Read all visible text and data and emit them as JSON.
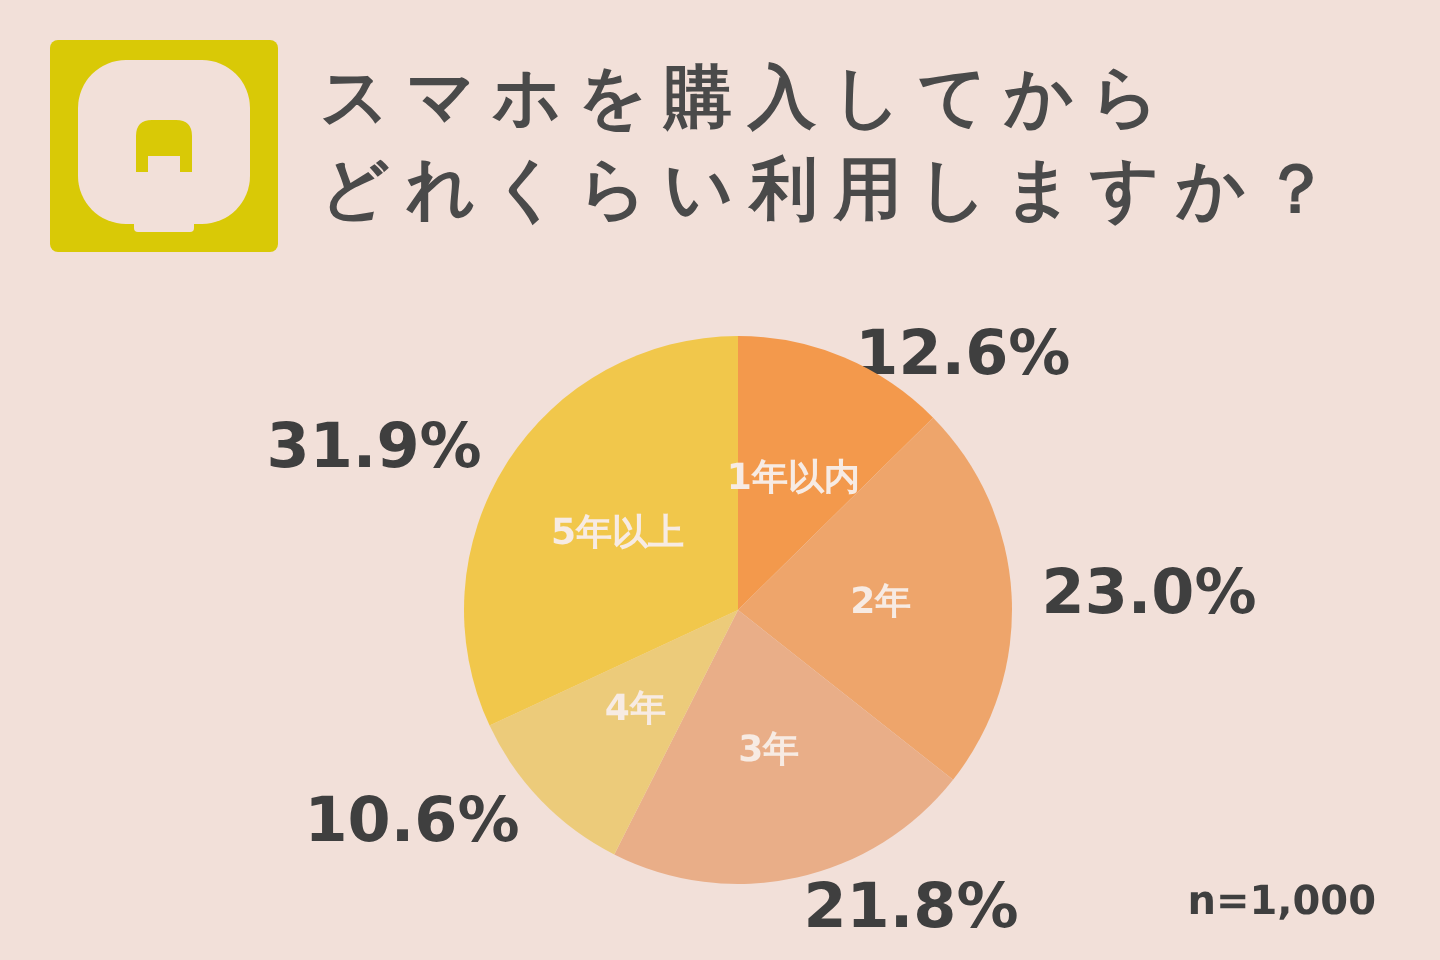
{
  "chart_data": {
    "type": "pie",
    "title": "スマホを購入してからどれくらい利用しますか？",
    "categories": [
      "1年以内",
      "2年",
      "3年",
      "4年",
      "5年以上"
    ],
    "values": [
      12.6,
      23.0,
      21.8,
      10.6,
      31.9
    ],
    "colors": [
      "#f3994c",
      "#eea56b",
      "#e9ae88",
      "#eccb7a",
      "#f1c74b"
    ],
    "value_labels": [
      "12.6%",
      "23.0%",
      "21.8%",
      "10.6%",
      "31.9%"
    ],
    "annotations": [
      "n=1,000"
    ]
  }
}
